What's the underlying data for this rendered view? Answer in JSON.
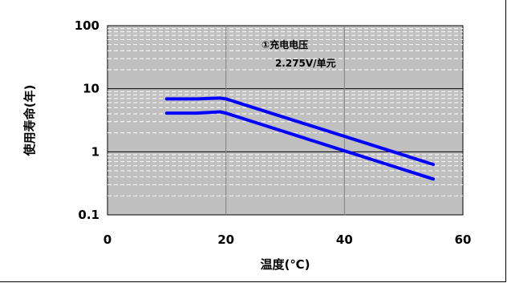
{
  "chart_data": {
    "type": "line",
    "title": "",
    "xlabel": "温度(℃)",
    "ylabel": "使用寿命(年)",
    "xlim": [
      0,
      60
    ],
    "ylim": [
      0.1,
      100
    ],
    "y_scale": "log",
    "x_ticks": [
      "0",
      "20",
      "40",
      "60"
    ],
    "y_ticks": [
      "100",
      "10",
      "1",
      "0.1"
    ],
    "grid": true,
    "plot_background": "#c0c0c0",
    "annotation": [
      "①充电电压",
      "2.275V/单元"
    ],
    "series": [
      {
        "color": "#0000ff",
        "x": [
          10,
          15,
          19,
          20,
          55
        ],
        "y": [
          6.9,
          6.9,
          7.1,
          6.9,
          0.63
        ]
      },
      {
        "color": "#0000ff",
        "x": [
          10,
          15,
          19,
          20,
          55
        ],
        "y": [
          4.1,
          4.1,
          4.3,
          4.1,
          0.37
        ]
      }
    ]
  }
}
